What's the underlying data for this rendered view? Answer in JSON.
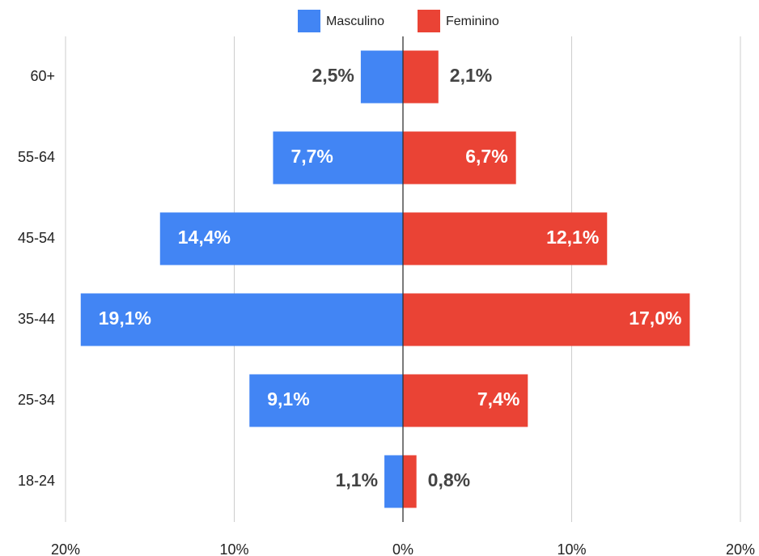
{
  "chart_data": {
    "type": "pyramid",
    "categories": [
      "60+",
      "55-64",
      "45-54",
      "35-44",
      "25-34",
      "18-24"
    ],
    "series": [
      {
        "name": "Masculino",
        "color": "#4285f4",
        "side": "left",
        "values": [
          2.5,
          7.7,
          14.4,
          19.1,
          9.1,
          1.1
        ],
        "value_labels": [
          "2,5%",
          "7,7%",
          "14,4%",
          "19,1%",
          "9,1%",
          "1,1%"
        ]
      },
      {
        "name": "Feminino",
        "color": "#ea4335",
        "side": "right",
        "values": [
          2.1,
          6.7,
          12.1,
          17.0,
          7.4,
          0.8
        ],
        "value_labels": [
          "2,1%",
          "6,7%",
          "12,1%",
          "17,0%",
          "7,4%",
          "0,8%"
        ]
      }
    ],
    "xlim": [
      0,
      20
    ],
    "xticks": [
      {
        "value": 0,
        "label": "0%"
      },
      {
        "value": 10,
        "label": "10%"
      },
      {
        "value": 20,
        "label": "20%"
      }
    ],
    "grid": true,
    "legend": "top"
  }
}
